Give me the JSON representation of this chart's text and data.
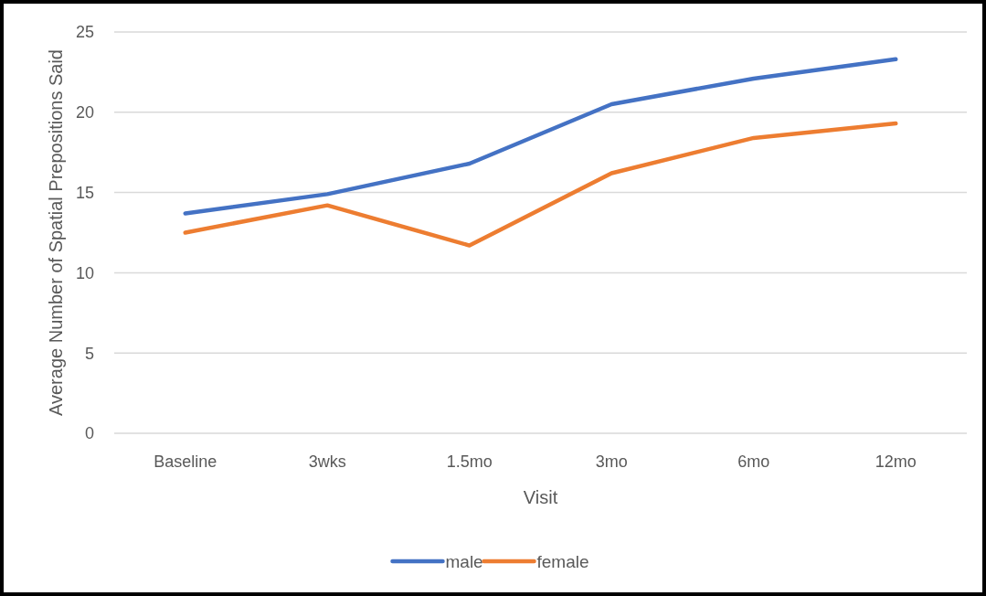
{
  "chart_data": {
    "type": "line",
    "xlabel": "Visit",
    "ylabel": "Average Number of Spatial Prepositions Said",
    "categories": [
      "Baseline",
      "3wks",
      "1.5mo",
      "3mo",
      "6mo",
      "12mo"
    ],
    "series": [
      {
        "name": "male",
        "color": "#4472c4",
        "values": [
          13.7,
          14.9,
          16.8,
          20.5,
          22.1,
          23.3
        ]
      },
      {
        "name": "female",
        "color": "#ed7d31",
        "values": [
          12.5,
          14.2,
          11.7,
          16.2,
          18.4,
          19.3
        ]
      }
    ],
    "ylim": [
      0,
      25
    ],
    "yticks": [
      0,
      5,
      10,
      15,
      20,
      25
    ],
    "grid": "y",
    "legend": "bottom",
    "marker": "none"
  }
}
